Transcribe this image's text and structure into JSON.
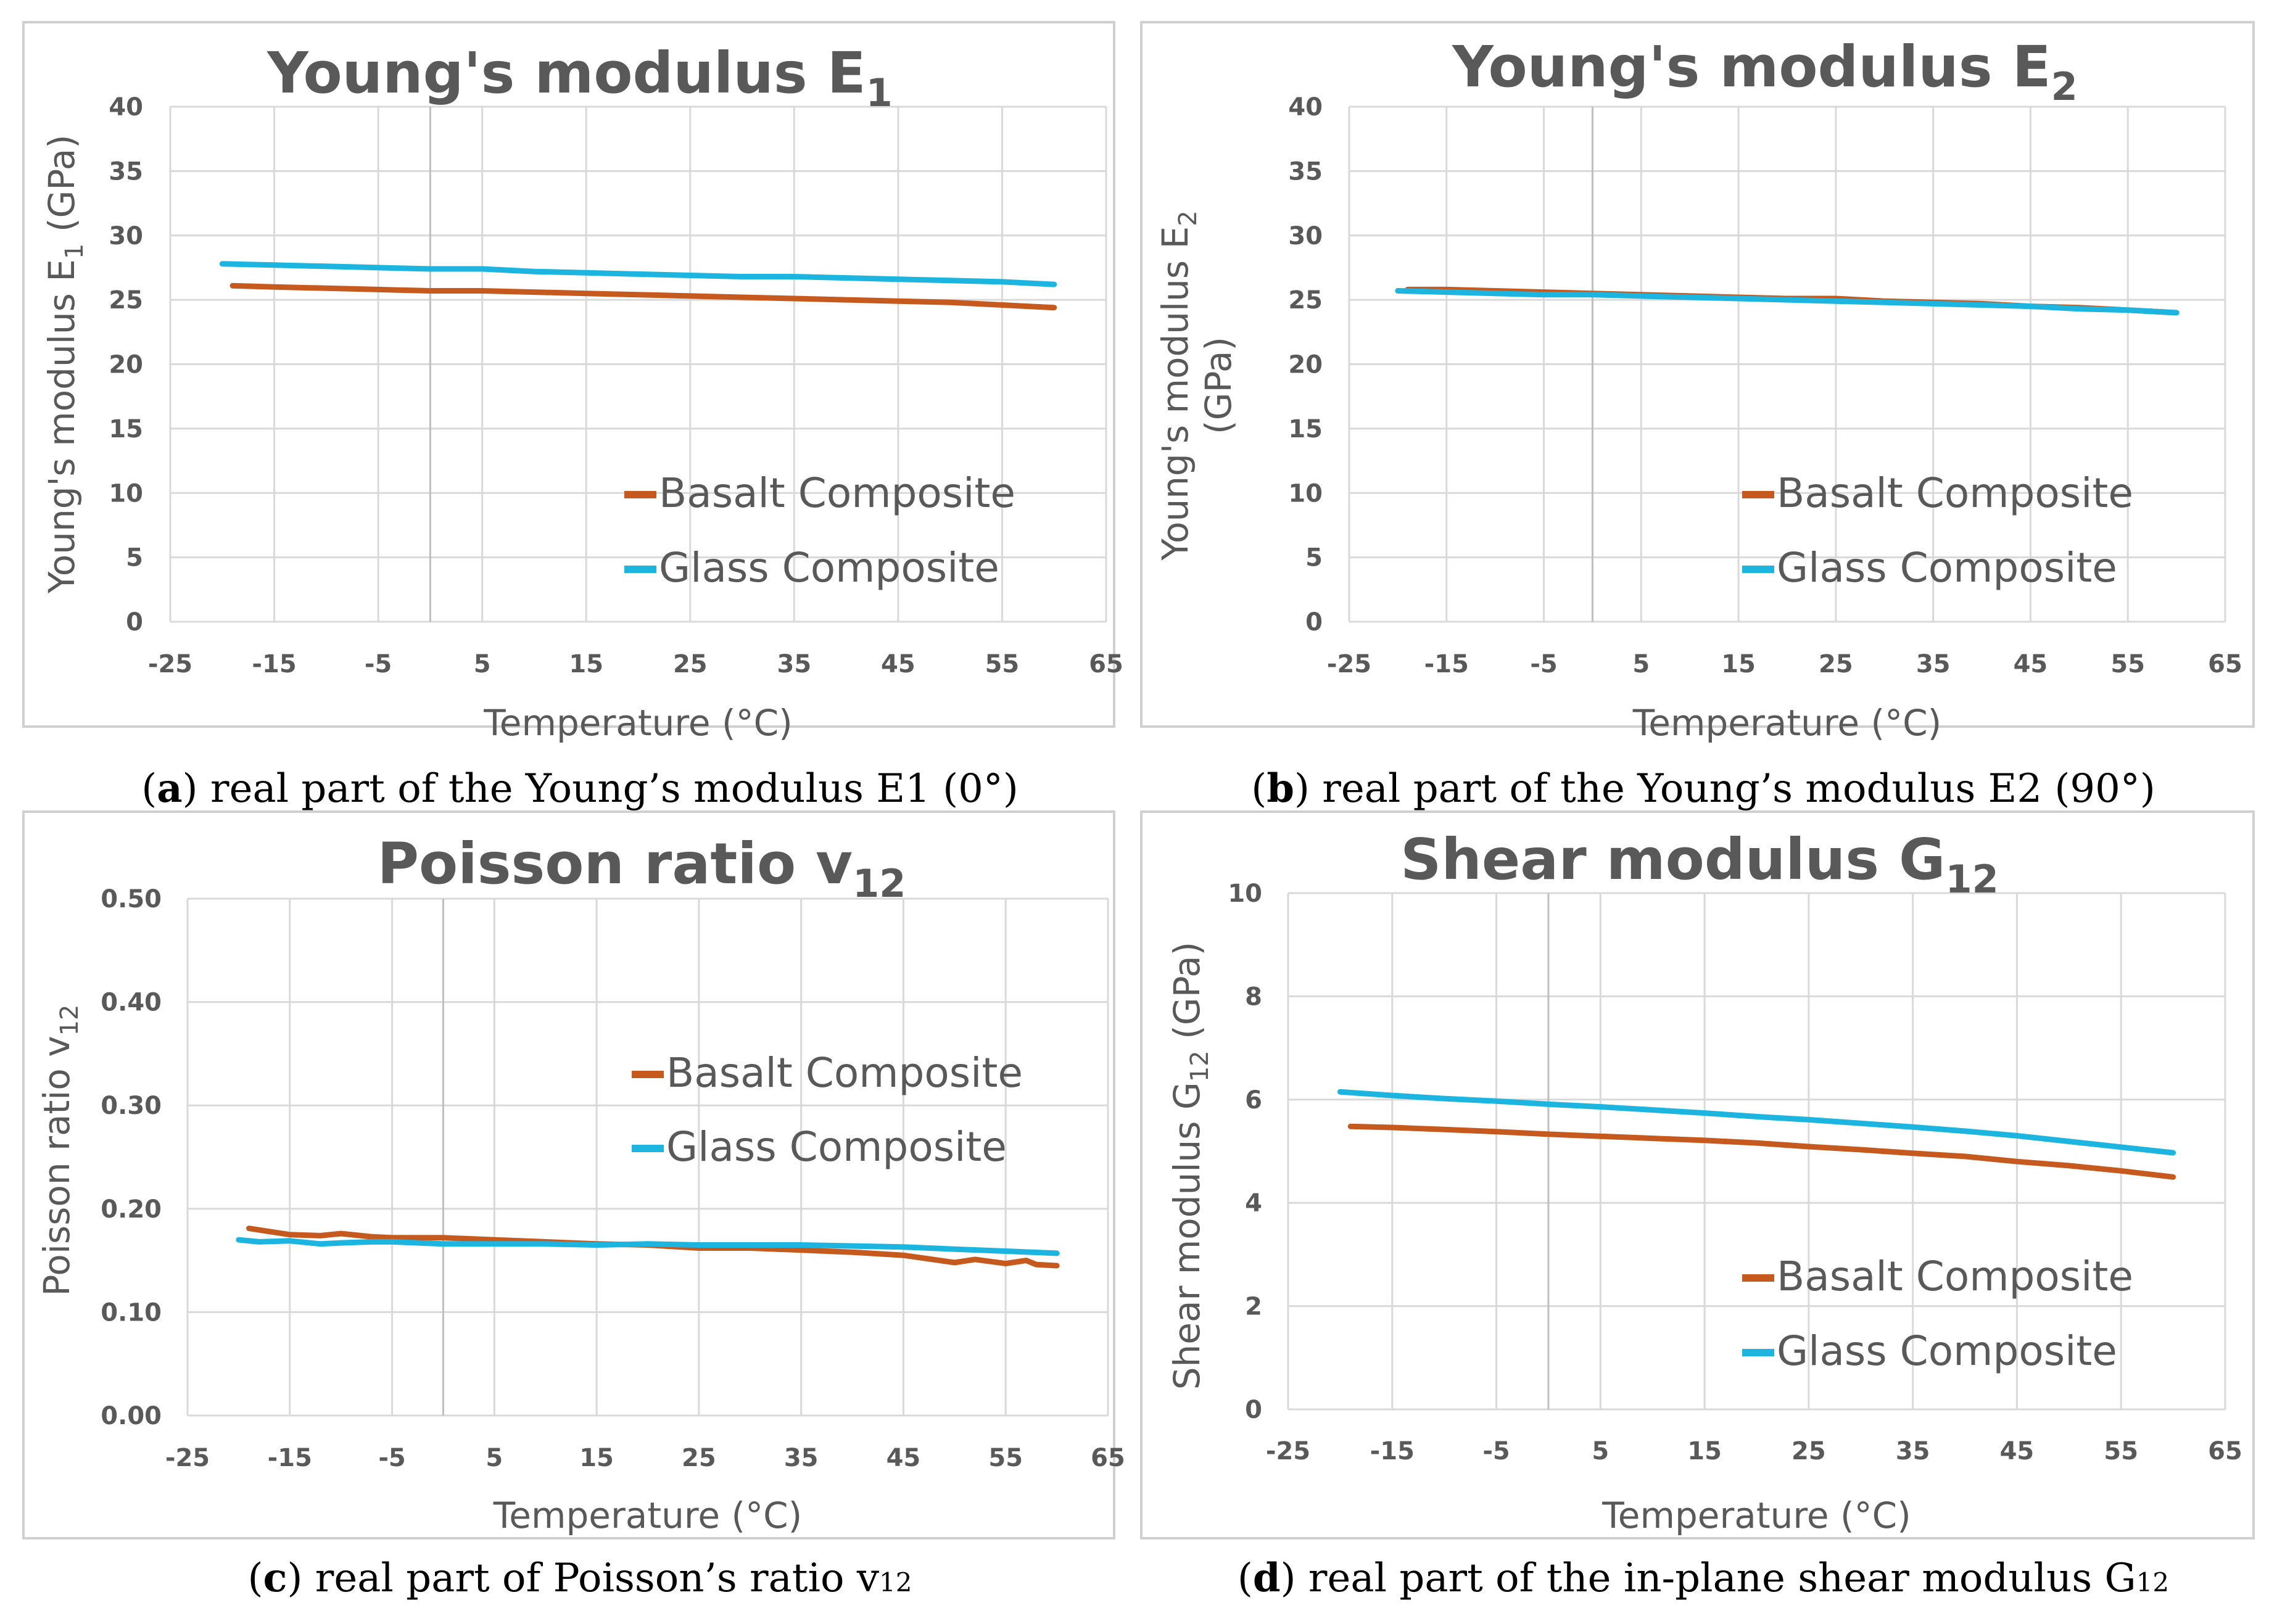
{
  "chart_data": [
    {
      "type": "line",
      "title": "Young's modulus E",
      "title_sub": "1",
      "xlabel": "Temperature (°C)",
      "ylabel": "Young's modulus E",
      "ylabel_sub": "1",
      "ylabel_suffix": " (GPa)",
      "xlim": [
        -25,
        65
      ],
      "ylim": [
        0,
        40
      ],
      "x_ticks": [
        -25,
        -15,
        -5,
        5,
        15,
        25,
        35,
        45,
        55,
        65
      ],
      "y_ticks": [
        0,
        5,
        10,
        15,
        20,
        25,
        30,
        35,
        40
      ],
      "y_tick_labels": [
        "0",
        "5",
        "10",
        "15",
        "20",
        "25",
        "30",
        "35",
        "40"
      ],
      "series": [
        {
          "name": "Basalt Composite",
          "color": "#C65A1E",
          "x": [
            -19,
            -15,
            -10,
            -5,
            0,
            5,
            10,
            15,
            20,
            25,
            30,
            35,
            40,
            45,
            50,
            55,
            60
          ],
          "y": [
            26.1,
            26.0,
            25.9,
            25.8,
            25.7,
            25.7,
            25.6,
            25.5,
            25.4,
            25.3,
            25.2,
            25.1,
            25.0,
            24.9,
            24.8,
            24.6,
            24.4
          ]
        },
        {
          "name": "Glass Composite",
          "color": "#1CB5E0",
          "x": [
            -20,
            -15,
            -10,
            -5,
            0,
            5,
            10,
            15,
            20,
            25,
            30,
            35,
            40,
            45,
            50,
            55,
            60
          ],
          "y": [
            27.8,
            27.7,
            27.6,
            27.5,
            27.4,
            27.4,
            27.2,
            27.1,
            27.0,
            26.9,
            26.8,
            26.8,
            26.7,
            26.6,
            26.5,
            26.4,
            26.2
          ]
        }
      ]
    },
    {
      "type": "line",
      "title": "Young's modulus E",
      "title_sub": "2",
      "xlabel": "Temperature (°C)",
      "ylabel": "Young's modulus E",
      "ylabel_sub": "2",
      "ylabel_line2": "(GPa)",
      "xlim": [
        -25,
        65
      ],
      "ylim": [
        0,
        40
      ],
      "x_ticks": [
        -25,
        -15,
        -5,
        5,
        15,
        25,
        35,
        45,
        55,
        65
      ],
      "y_ticks": [
        0,
        5,
        10,
        15,
        20,
        25,
        30,
        35,
        40
      ],
      "y_tick_labels": [
        "0",
        "5",
        "10",
        "15",
        "20",
        "25",
        "30",
        "35",
        "40"
      ],
      "series": [
        {
          "name": "Basalt Composite",
          "color": "#C65A1E",
          "x": [
            -19,
            -15,
            -10,
            -5,
            0,
            5,
            10,
            15,
            20,
            25,
            30,
            35,
            40,
            45,
            50,
            55,
            60
          ],
          "y": [
            25.8,
            25.8,
            25.7,
            25.6,
            25.5,
            25.4,
            25.3,
            25.2,
            25.1,
            25.1,
            24.9,
            24.8,
            24.7,
            24.5,
            24.4,
            24.2,
            24.0
          ]
        },
        {
          "name": "Glass Composite",
          "color": "#1CB5E0",
          "x": [
            -20,
            -15,
            -10,
            -5,
            0,
            5,
            10,
            15,
            20,
            25,
            30,
            35,
            40,
            45,
            50,
            55,
            60
          ],
          "y": [
            25.7,
            25.6,
            25.5,
            25.4,
            25.4,
            25.3,
            25.2,
            25.1,
            25.0,
            24.9,
            24.8,
            24.7,
            24.6,
            24.5,
            24.3,
            24.2,
            24.0
          ]
        }
      ]
    },
    {
      "type": "line",
      "title": "Poisson ratio v",
      "title_sub": "12",
      "xlabel": "Temperature (°C)",
      "ylabel": "Poisson ratio v",
      "ylabel_sub": "12",
      "xlim": [
        -25,
        65
      ],
      "ylim": [
        0,
        0.5
      ],
      "x_ticks": [
        -25,
        -15,
        -5,
        5,
        15,
        25,
        35,
        45,
        55,
        65
      ],
      "y_ticks": [
        0,
        0.1,
        0.2,
        0.3,
        0.4,
        0.5
      ],
      "y_tick_labels": [
        "0.00",
        "0.10",
        "0.20",
        "0.30",
        "0.40",
        "0.50"
      ],
      "series": [
        {
          "name": "Basalt Composite",
          "color": "#C65A1E",
          "x": [
            -19,
            -17,
            -15,
            -12,
            -10,
            -7,
            -5,
            0,
            5,
            10,
            15,
            20,
            25,
            30,
            35,
            40,
            45,
            50,
            52,
            55,
            57,
            58,
            60
          ],
          "y": [
            0.181,
            0.178,
            0.175,
            0.174,
            0.176,
            0.173,
            0.172,
            0.172,
            0.17,
            0.168,
            0.166,
            0.165,
            0.162,
            0.162,
            0.16,
            0.158,
            0.155,
            0.148,
            0.151,
            0.147,
            0.15,
            0.146,
            0.145
          ]
        },
        {
          "name": "Glass Composite",
          "color": "#1CB5E0",
          "x": [
            -20,
            -18,
            -15,
            -12,
            -10,
            -7,
            -5,
            0,
            5,
            10,
            15,
            20,
            25,
            30,
            35,
            40,
            45,
            50,
            55,
            60
          ],
          "y": [
            0.17,
            0.168,
            0.169,
            0.166,
            0.167,
            0.168,
            0.168,
            0.166,
            0.166,
            0.166,
            0.165,
            0.166,
            0.165,
            0.165,
            0.165,
            0.164,
            0.163,
            0.161,
            0.159,
            0.157
          ]
        }
      ]
    },
    {
      "type": "line",
      "title": "Shear modulus G",
      "title_sub": "12",
      "xlabel": "Temperature (°C)",
      "ylabel": "Shear modulus G",
      "ylabel_sub": "12",
      "ylabel_suffix": " (GPa)",
      "xlim": [
        -25,
        65
      ],
      "ylim": [
        0,
        10
      ],
      "x_ticks": [
        -25,
        -15,
        -5,
        5,
        15,
        25,
        35,
        45,
        55,
        65
      ],
      "y_ticks": [
        0,
        2,
        4,
        6,
        8,
        10
      ],
      "y_tick_labels": [
        "0",
        "2",
        "4",
        "6",
        "8",
        "10"
      ],
      "series": [
        {
          "name": "Basalt Composite",
          "color": "#C65A1E",
          "x": [
            -19,
            -15,
            -10,
            -5,
            0,
            5,
            10,
            15,
            20,
            25,
            30,
            35,
            40,
            45,
            50,
            55,
            60
          ],
          "y": [
            5.48,
            5.46,
            5.42,
            5.38,
            5.33,
            5.29,
            5.25,
            5.21,
            5.16,
            5.09,
            5.03,
            4.96,
            4.9,
            4.8,
            4.72,
            4.62,
            4.5
          ]
        },
        {
          "name": "Glass Composite",
          "color": "#1CB5E0",
          "x": [
            -20,
            -15,
            -10,
            -5,
            0,
            5,
            10,
            15,
            20,
            25,
            30,
            35,
            40,
            45,
            50,
            55,
            60
          ],
          "y": [
            6.15,
            6.08,
            6.02,
            5.97,
            5.91,
            5.86,
            5.8,
            5.74,
            5.67,
            5.61,
            5.54,
            5.47,
            5.39,
            5.3,
            5.19,
            5.08,
            4.97
          ]
        }
      ]
    }
  ],
  "captions": [
    {
      "letter": "a",
      "text": ") real part of the Young’s modulus E1 (0°)"
    },
    {
      "letter": "b",
      "text": ") real part of the Young’s modulus E2 (90°)"
    },
    {
      "letter": "c",
      "text": ") real part of Poisson’s ratio v",
      "sub": "12"
    },
    {
      "letter": "d",
      "text": ") real part of the in-plane shear modulus G",
      "sub": "12"
    }
  ]
}
